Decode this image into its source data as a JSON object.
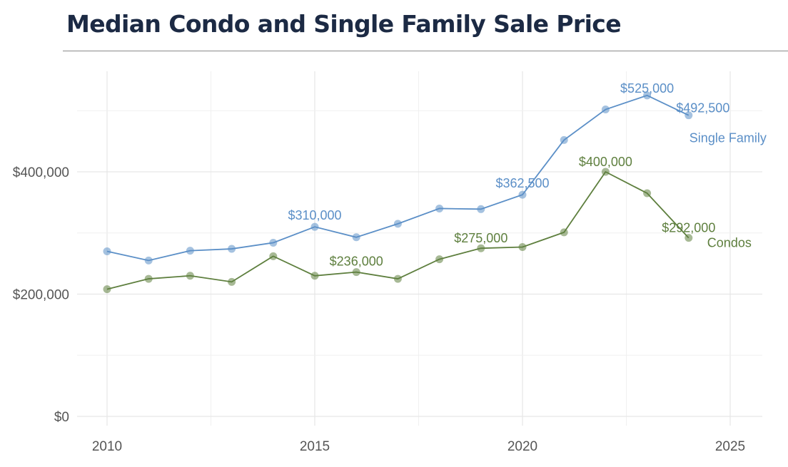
{
  "page": {
    "title": "Median Condo and Single Family Sale Price"
  },
  "chart_data": {
    "type": "line",
    "title": "Median Condo and Single Family Sale Price",
    "xlabel": "",
    "ylabel": "",
    "xlim": [
      2010,
      2025
    ],
    "ylim": [
      0,
      560000
    ],
    "x_ticks": [
      2010,
      2015,
      2020,
      2025
    ],
    "y_ticks": [
      0,
      200000,
      400000
    ],
    "y_tick_labels": [
      "$0",
      "$200,000",
      "$400,000"
    ],
    "x": [
      2010,
      2011,
      2012,
      2013,
      2014,
      2015,
      2016,
      2017,
      2018,
      2019,
      2020,
      2021,
      2022,
      2023,
      2024
    ],
    "grid": true,
    "legend": "direct labels at right end of lines",
    "series": [
      {
        "name": "Single Family",
        "color": "#5b8fc7",
        "values": [
          270000,
          255000,
          271000,
          274000,
          284000,
          310000,
          293000,
          315000,
          340000,
          339000,
          362500,
          452000,
          502000,
          525000,
          492500
        ],
        "annotations": [
          {
            "x": 2015,
            "text": "$310,000"
          },
          {
            "x": 2020,
            "text": "$362,500"
          },
          {
            "x": 2023,
            "text": "$525,000"
          },
          {
            "x": 2024,
            "text": "$492,500"
          }
        ]
      },
      {
        "name": "Condos",
        "color": "#5e7f3e",
        "values": [
          208000,
          225000,
          230000,
          220000,
          262000,
          230000,
          236000,
          225000,
          257000,
          275000,
          277000,
          301000,
          400000,
          365000,
          292000
        ],
        "annotations": [
          {
            "x": 2016,
            "text": "$236,000"
          },
          {
            "x": 2019,
            "text": "$275,000"
          },
          {
            "x": 2022,
            "text": "$400,000"
          },
          {
            "x": 2024,
            "text": "$292,000"
          }
        ]
      }
    ]
  }
}
